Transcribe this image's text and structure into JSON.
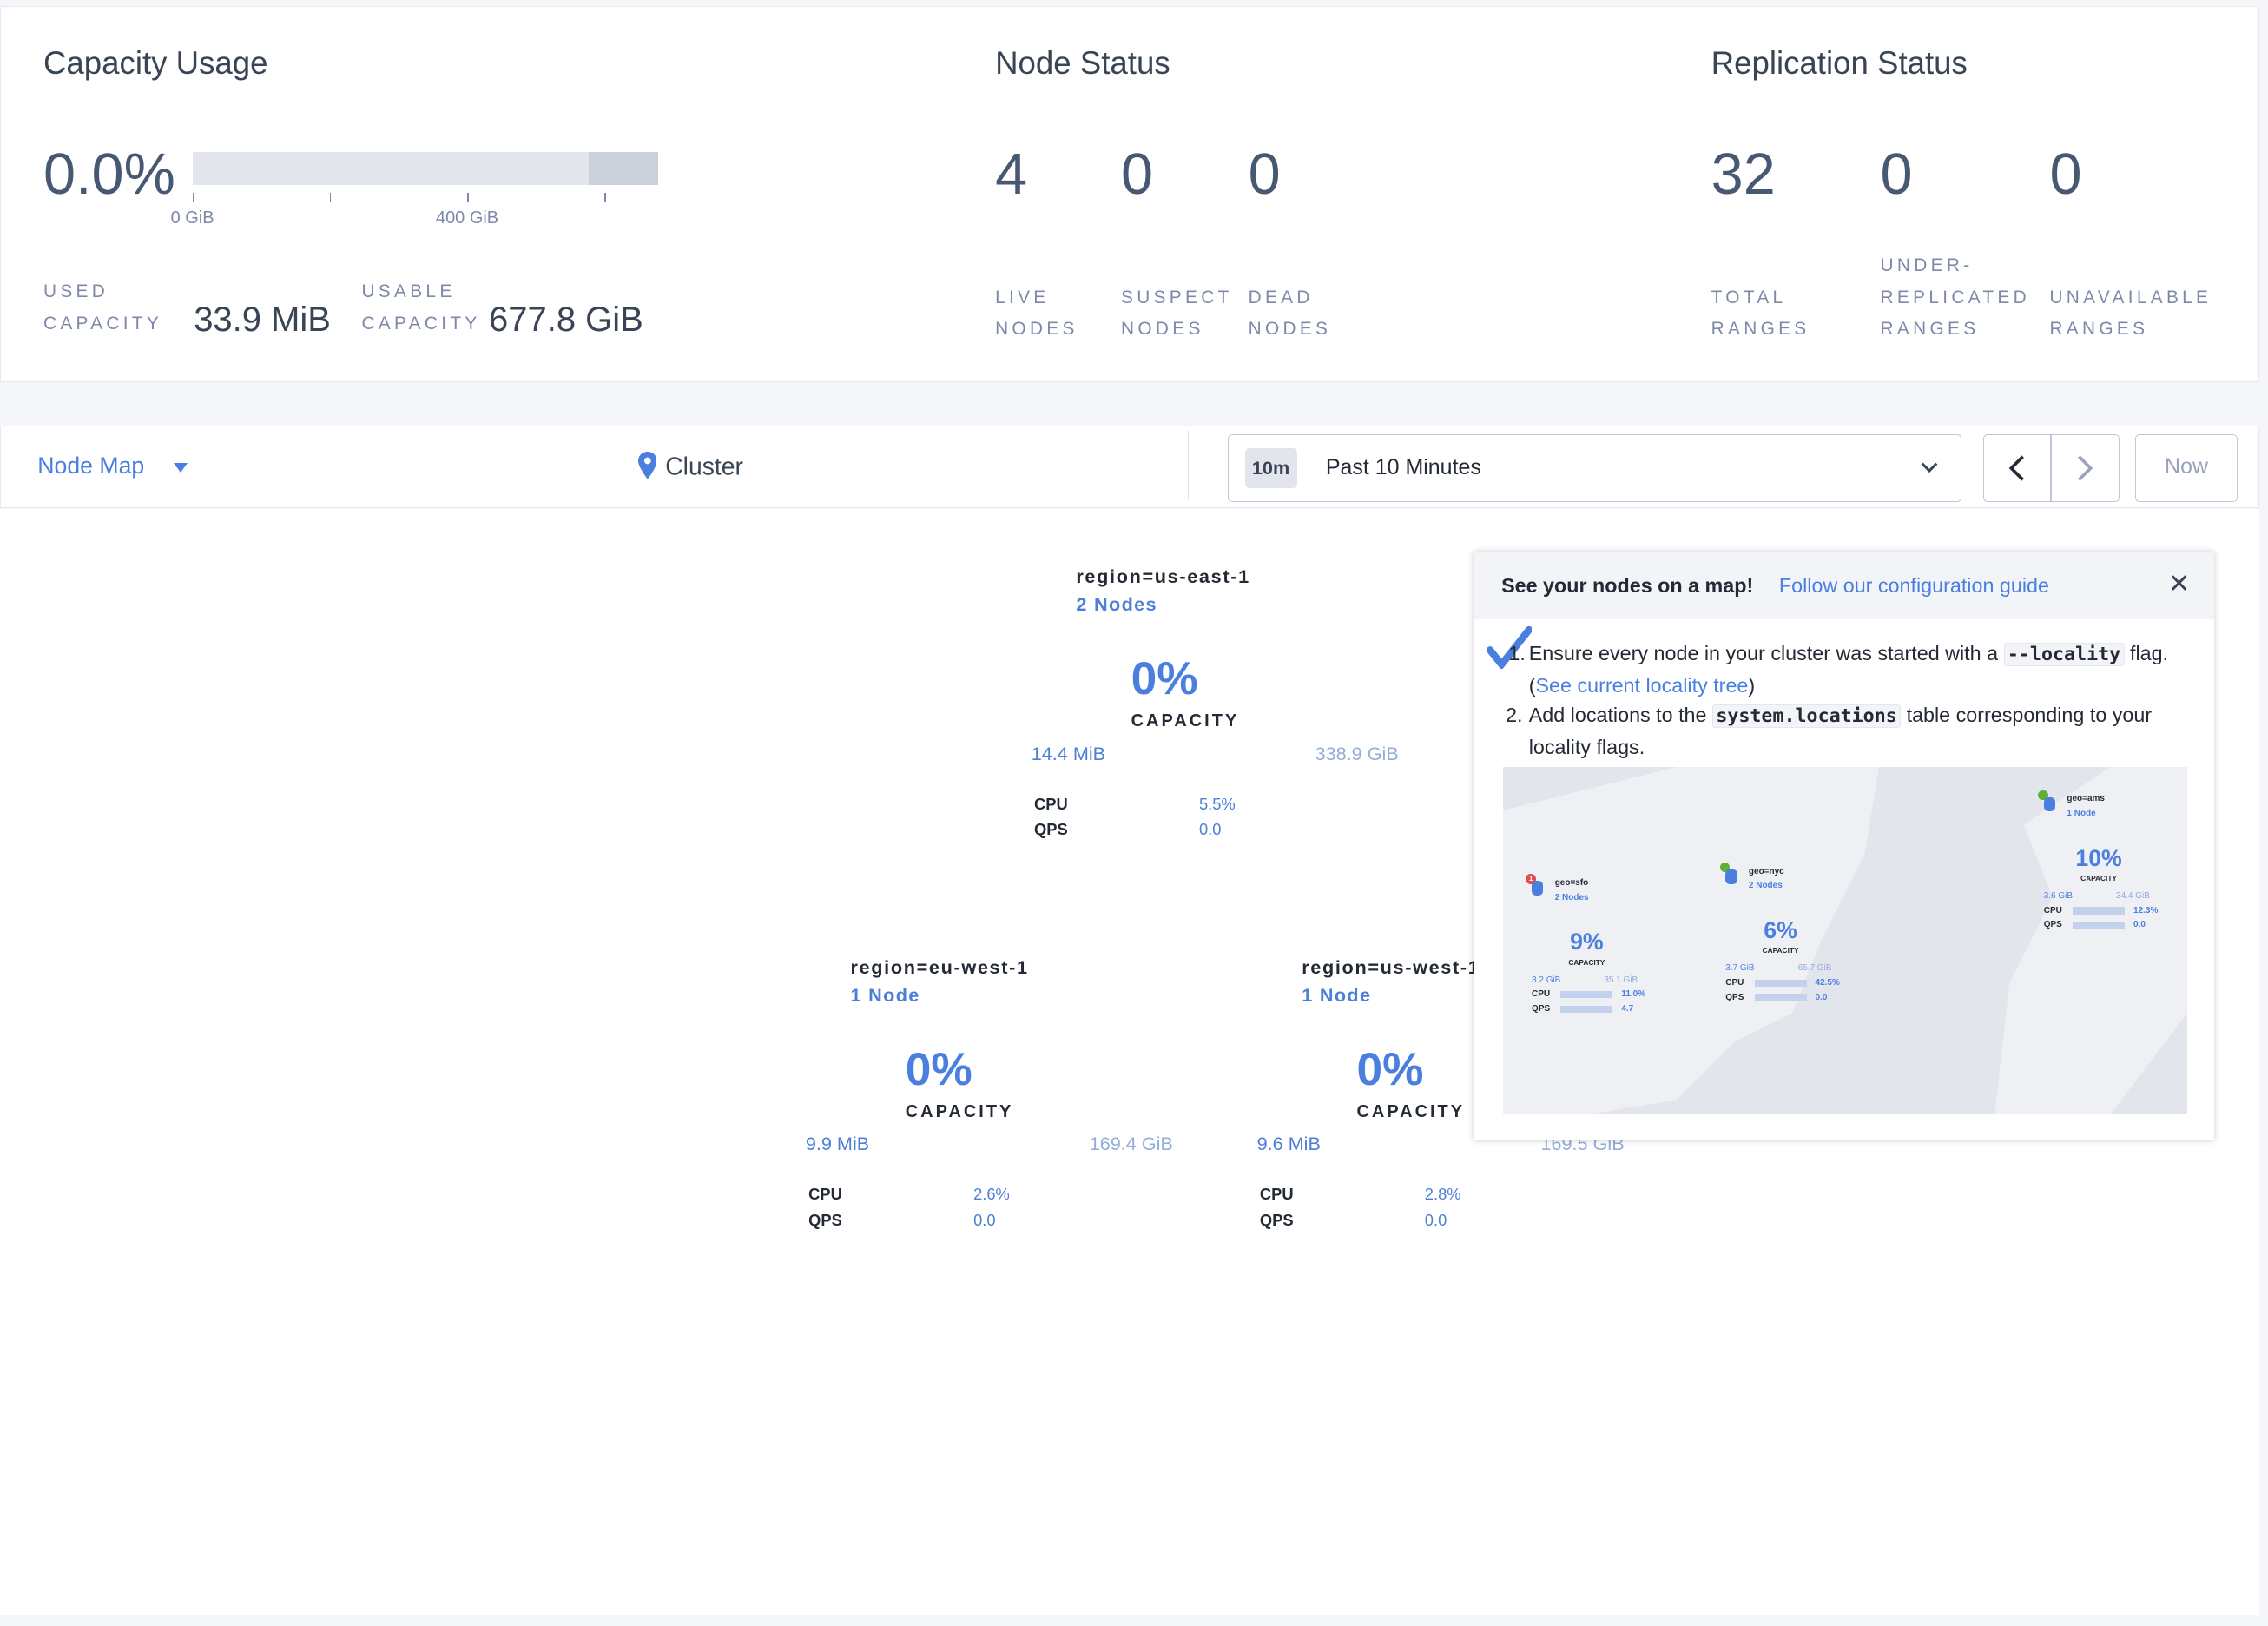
{
  "capacity": {
    "title": "Capacity Usage",
    "percent": "0.0%",
    "bar_used_fraction": 0.0,
    "ticks": [
      "0 GiB",
      "400 GiB"
    ],
    "used_label": [
      "USED",
      "CAPACITY"
    ],
    "used_value": "33.9 MiB",
    "usable_label": [
      "USABLE",
      "CAPACITY"
    ],
    "usable_value": "677.8 GiB"
  },
  "node_status": {
    "title": "Node Status",
    "stats": [
      {
        "value": "4",
        "label": [
          "LIVE",
          "NODES"
        ]
      },
      {
        "value": "0",
        "label": [
          "SUSPECT",
          "NODES"
        ]
      },
      {
        "value": "0",
        "label": [
          "DEAD",
          "NODES"
        ]
      }
    ]
  },
  "replication": {
    "title": "Replication Status",
    "stats": [
      {
        "value": "32",
        "label": [
          "",
          "TOTAL",
          "RANGES"
        ]
      },
      {
        "value": "0",
        "label": [
          "UNDER-",
          "REPLICATED",
          "RANGES"
        ]
      },
      {
        "value": "0",
        "label": [
          "",
          "UNAVAILABLE",
          "RANGES"
        ]
      }
    ]
  },
  "toolbar": {
    "view": "Node Map",
    "breadcrumb": "Cluster",
    "time_badge": "10m",
    "time_range": "Past 10 Minutes",
    "now_label": "Now"
  },
  "clusters": [
    {
      "name": "region=us-east-1",
      "count": "2 Nodes",
      "capacity": "0%",
      "capacity_label": "CAPACITY",
      "used": "14.4 MiB",
      "total": "338.9 GiB",
      "cpu_label": "CPU",
      "cpu": "5.5%",
      "qps_label": "QPS",
      "qps": "0.0",
      "status": "healthy"
    },
    {
      "name": "region=eu-west-1",
      "count": "1 Node",
      "capacity": "0%",
      "capacity_label": "CAPACITY",
      "used": "9.9 MiB",
      "total": "169.4 GiB",
      "cpu_label": "CPU",
      "cpu": "2.6%",
      "qps_label": "QPS",
      "qps": "0.0",
      "status": "healthy"
    },
    {
      "name": "region=us-west-1",
      "count": "1 Node",
      "capacity": "0%",
      "capacity_label": "CAPACITY",
      "used": "9.6 MiB",
      "total": "169.5 GiB",
      "cpu_label": "CPU",
      "cpu": "2.8%",
      "qps_label": "QPS",
      "qps": "0.0",
      "status": "healthy"
    }
  ],
  "popup": {
    "heading": "See your nodes on a map!",
    "link": "Follow our configuration guide",
    "step1_a": "Ensure every node in your cluster was started with a",
    "step1_code": "--locality",
    "step1_b": "flag. (",
    "step1_link": "See current locality tree",
    "step1_c": ")",
    "step2_a": "Add locations to the",
    "step2_code": "system.locations",
    "step2_b": "table corresponding to your locality flags.",
    "example_nodes": [
      {
        "name": "geo=sfo",
        "count": "2 Nodes",
        "capacity": "9%",
        "capacity_label": "CAPACITY",
        "used": "3.2 GiB",
        "total": "35.1 GiB",
        "cpu": "11.0%",
        "qps": "4.7",
        "alert": "1"
      },
      {
        "name": "geo=nyc",
        "count": "2 Nodes",
        "capacity": "6%",
        "capacity_label": "CAPACITY",
        "used": "3.7 GiB",
        "total": "65.7 GiB",
        "cpu": "42.5%",
        "qps": "0.0"
      },
      {
        "name": "geo=ams",
        "count": "1 Node",
        "capacity": "10%",
        "capacity_label": "CAPACITY",
        "used": "3.6 GiB",
        "total": "34.4 GiB",
        "cpu": "12.3%",
        "qps": "0.0"
      }
    ],
    "cpu_label": "CPU",
    "qps_label": "QPS"
  },
  "colors": {
    "accent": "#4a7fe0",
    "healthy": "#5cb035",
    "alert": "#e04b4b",
    "text": "#242a35",
    "muted": "#7e89a9"
  }
}
